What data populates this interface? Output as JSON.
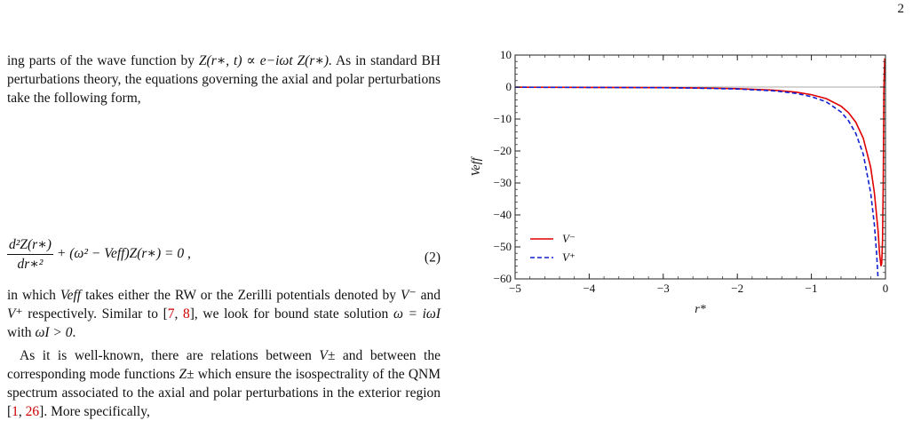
{
  "page_number": "2",
  "text": {
    "p1": {
      "lead": "ing parts of the wave function by ",
      "eq": "Z(r∗, t) ∝ e−iωt Z(r∗).",
      "rest": " As in standard BH perturbations theory, the equations governing the axial and polar perturbations take the following form,"
    },
    "equation": {
      "numerator": "d²Z(r∗)",
      "denominator": "dr∗²",
      "rest": "+ (ω² − Veff)Z(r∗) = 0 ,",
      "number": "(2)"
    },
    "p2": {
      "a": "in which ",
      "veff": "Veff",
      "b": " takes either the RW or the Zerilli potentials denoted by ",
      "vminus": "V⁻",
      "c": " and ",
      "vplus": "V⁺",
      "d": " respectively. Similar to [",
      "cite1": "7",
      "e": ", ",
      "cite2": "8",
      "f": "], we look for bound state solution ",
      "omega": "ω = iωI",
      "g": " with ",
      "omegai": "ωI > 0",
      "h": "."
    },
    "p3": {
      "a": "As it is well-known, there are relations between ",
      "vpm": "V±",
      "b": " and between the corresponding mode functions ",
      "zpm": "Z±",
      "c": " which ensure the isospectrality of the QNM spectrum associated to the axial and polar perturbations in the exterior region [",
      "cite1": "1",
      "d": ", ",
      "cite2": "26",
      "e": "]. More specifically,"
    }
  },
  "chart_data": {
    "type": "line",
    "xlabel": "r*",
    "ylabel": "Veff",
    "xlim": [
      -5,
      0
    ],
    "ylim": [
      -60,
      10
    ],
    "xticks": [
      -5,
      -4,
      -3,
      -2,
      -1,
      0
    ],
    "yticks": [
      10,
      0,
      -10,
      -20,
      -30,
      -40,
      -50,
      -60
    ],
    "x_tick_labels": [
      "−5",
      "−4",
      "−3",
      "−2",
      "−1",
      "0"
    ],
    "y_tick_labels": [
      "10",
      "0",
      "−10",
      "−20",
      "−30",
      "−40",
      "−50",
      "−60"
    ],
    "legend_position": "bottom-left",
    "series": [
      {
        "name": "V⁻",
        "color": "#e00000",
        "style": "solid",
        "x": [
          -5,
          -4,
          -3,
          -2.5,
          -2,
          -1.5,
          -1.2,
          -1,
          -0.8,
          -0.6,
          -0.5,
          -0.4,
          -0.3,
          -0.2,
          -0.15,
          -0.1,
          -0.08,
          -0.06,
          -0.05,
          -0.04,
          -0.03,
          -0.02,
          -0.01
        ],
        "y": [
          -0.05,
          -0.1,
          -0.2,
          -0.3,
          -0.5,
          -1.0,
          -1.6,
          -2.4,
          -3.6,
          -6.0,
          -8.0,
          -11.0,
          -16.0,
          -25.0,
          -33.0,
          -45.0,
          -52.0,
          -56.0,
          -55.0,
          -48.0,
          -30.0,
          0.0,
          9.0
        ]
      },
      {
        "name": "V⁺",
        "color": "#1020d0",
        "style": "dashed",
        "x": [
          -5,
          -4,
          -3,
          -2.5,
          -2,
          -1.5,
          -1.2,
          -1,
          -0.8,
          -0.6,
          -0.5,
          -0.4,
          -0.3,
          -0.2,
          -0.15,
          -0.12,
          -0.1
        ],
        "y": [
          -0.05,
          -0.1,
          -0.2,
          -0.35,
          -0.6,
          -1.2,
          -2.0,
          -3.0,
          -4.6,
          -7.8,
          -10.5,
          -14.5,
          -21.0,
          -33.0,
          -43.0,
          -52.0,
          -60.0
        ]
      }
    ]
  }
}
